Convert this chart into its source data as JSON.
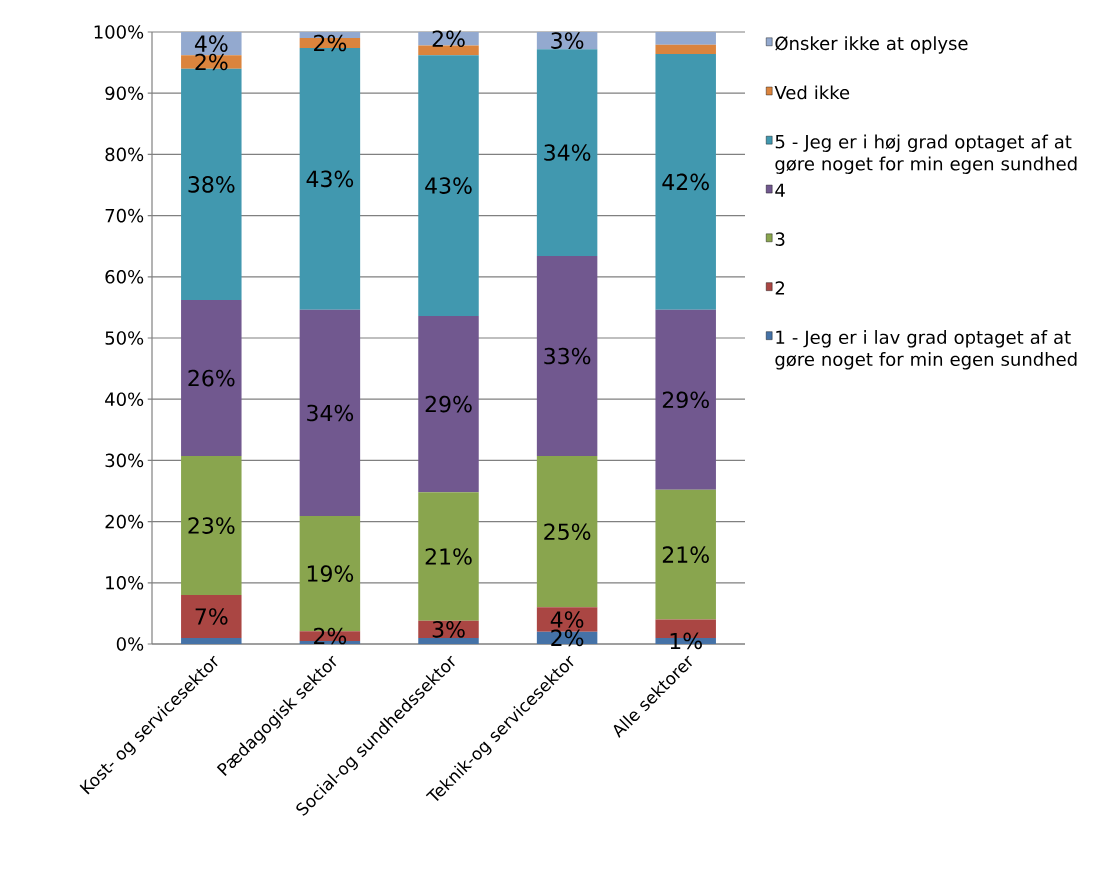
{
  "chart_data": {
    "type": "bar",
    "stacked": true,
    "categories": [
      "Kost- og servicesektor",
      "Pædagogisk sektor",
      "Social-og sundhedssektor",
      "Teknik-og servicesektor",
      "Alle sektorer"
    ],
    "series": [
      {
        "name": "1 - Jeg er i lav grad optaget af at gøre noget for min egen sundhed",
        "color": "#4572a7",
        "values": [
          1,
          0.5,
          1,
          2,
          1
        ],
        "value_labels": [
          null,
          null,
          null,
          "2%",
          "1%"
        ]
      },
      {
        "name": "2",
        "color": "#aa4643",
        "values": [
          7,
          1.6,
          2.8,
          4,
          3
        ],
        "value_labels": [
          "7%",
          "2%",
          "3%",
          "4%",
          null
        ]
      },
      {
        "name": "3",
        "color": "#89a54e",
        "values": [
          22.7,
          18.8,
          21,
          24.7,
          21.2
        ],
        "value_labels": [
          "23%",
          "19%",
          "21%",
          "25%",
          "21%"
        ]
      },
      {
        "name": "4",
        "color": "#71588f",
        "values": [
          25.5,
          33.7,
          28.8,
          32.7,
          29.4
        ],
        "value_labels": [
          "26%",
          "34%",
          "29%",
          "33%",
          "29%"
        ]
      },
      {
        "name": "5 - Jeg er i høj grad  optaget af at gøre noget for min egen sundhed",
        "color": "#4198af",
        "values": [
          37.8,
          42.8,
          42.6,
          33.8,
          41.8
        ],
        "value_labels": [
          "38%",
          "43%",
          "43%",
          "34%",
          "42%"
        ]
      },
      {
        "name": "Ved ikke",
        "color": "#db843d",
        "values": [
          2.2,
          1.6,
          1.6,
          0,
          1.5
        ],
        "value_labels": [
          "2%",
          "2%",
          null,
          null,
          null
        ]
      },
      {
        "name": "Ønsker ikke at oplyse",
        "color": "#93a9cf",
        "values": [
          3.8,
          1,
          2.2,
          2.8,
          2.1
        ],
        "value_labels": [
          "4%",
          null,
          "2%",
          "3%",
          null
        ]
      }
    ],
    "ylim": [
      0,
      100
    ],
    "yticks": [
      {
        "value": 0,
        "label": "0%"
      },
      {
        "value": 10,
        "label": "10%"
      },
      {
        "value": 20,
        "label": "20%"
      },
      {
        "value": 30,
        "label": "30%"
      },
      {
        "value": 40,
        "label": "40%"
      },
      {
        "value": 50,
        "label": "50%"
      },
      {
        "value": 60,
        "label": "60%"
      },
      {
        "value": 70,
        "label": "70%"
      },
      {
        "value": 80,
        "label": "80%"
      },
      {
        "value": 90,
        "label": "90%"
      },
      {
        "value": 100,
        "label": "100%"
      }
    ],
    "grid": "y",
    "legend": "right"
  }
}
